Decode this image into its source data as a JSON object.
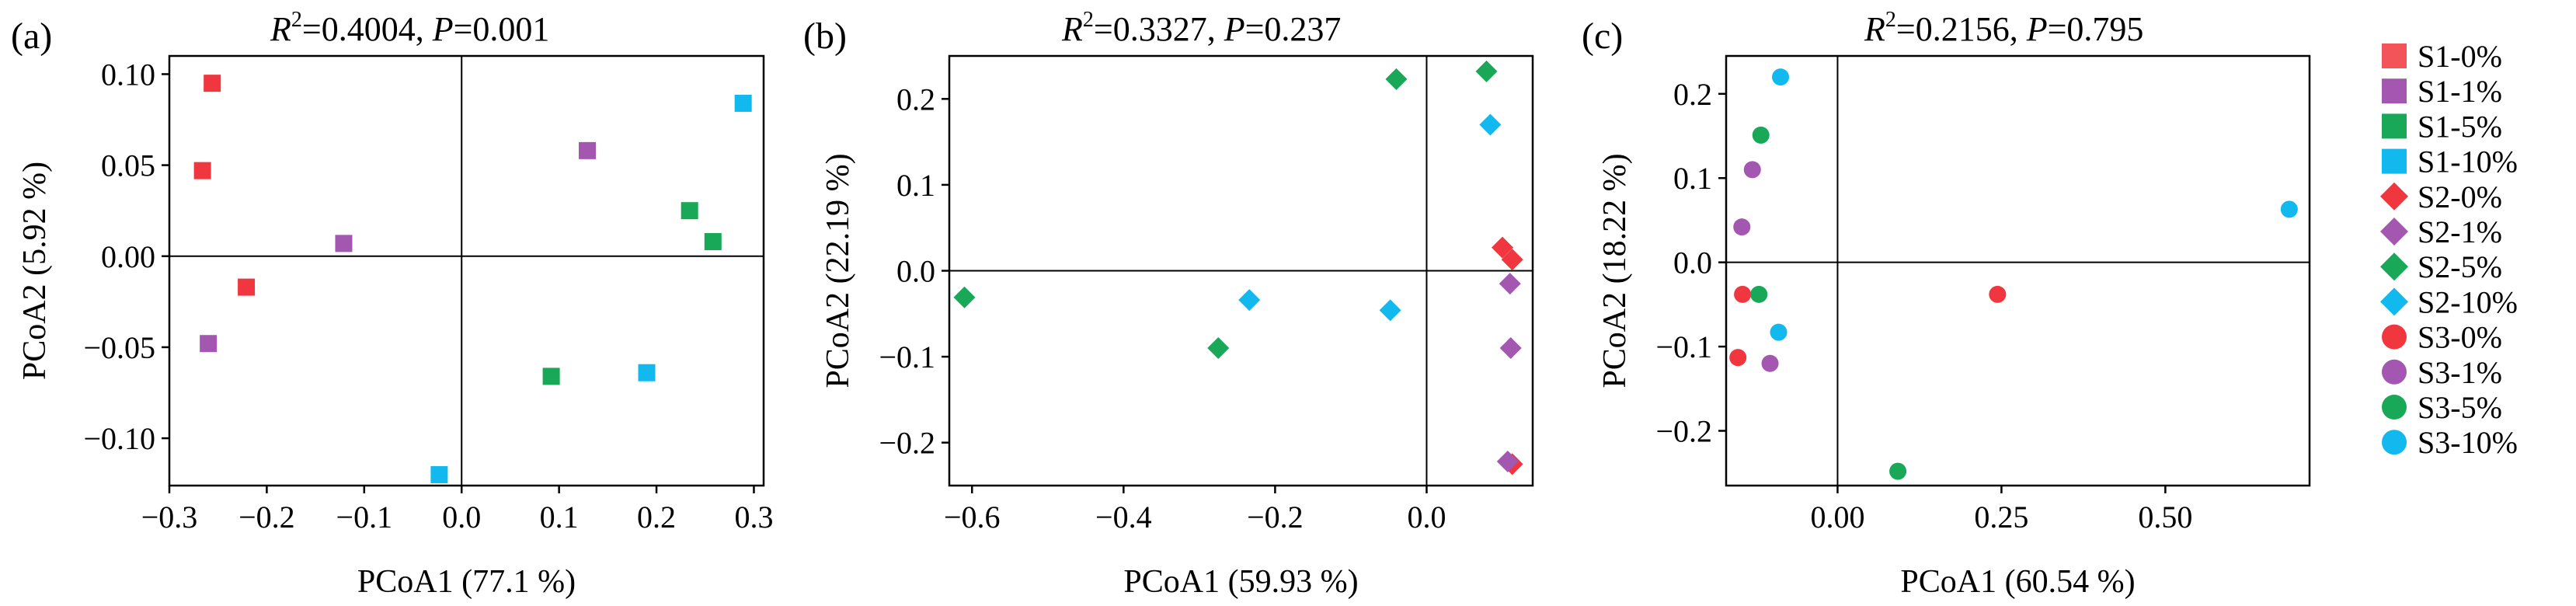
{
  "colors": {
    "0%": "#f0373f",
    "1%": "#a357b0",
    "5%": "#18a857",
    "10%": "#12b9ee",
    "legend_0%": "#f2545a"
  },
  "legend": [
    {
      "label": "S1-0%",
      "marker": "square",
      "level": "0%"
    },
    {
      "label": "S1-1%",
      "marker": "square",
      "level": "1%"
    },
    {
      "label": "S1-5%",
      "marker": "square",
      "level": "5%"
    },
    {
      "label": "S1-10%",
      "marker": "square",
      "level": "10%"
    },
    {
      "label": "S2-0%",
      "marker": "diamond",
      "level": "0%"
    },
    {
      "label": "S2-1%",
      "marker": "diamond",
      "level": "1%"
    },
    {
      "label": "S2-5%",
      "marker": "diamond",
      "level": "5%"
    },
    {
      "label": "S2-10%",
      "marker": "diamond",
      "level": "10%"
    },
    {
      "label": "S3-0%",
      "marker": "circle",
      "level": "0%"
    },
    {
      "label": "S3-1%",
      "marker": "circle",
      "level": "1%"
    },
    {
      "label": "S3-5%",
      "marker": "circle",
      "level": "5%"
    },
    {
      "label": "S3-10%",
      "marker": "circle",
      "level": "10%"
    }
  ],
  "chart_data": [
    {
      "type": "scatter",
      "tag": "(a)",
      "title_r2": "=0.4004, ",
      "title_p": "=0.001",
      "xlabel": "PCoA1 (77.1 %)",
      "ylabel": "PCoA2 (5.92 %)",
      "xlim": [
        -0.3,
        0.31
      ],
      "ylim": [
        -0.126,
        0.11
      ],
      "xticks": [
        -0.3,
        -0.2,
        -0.1,
        0.0,
        0.1,
        0.2,
        0.3
      ],
      "xticklabels": [
        "−0.3",
        "−0.2",
        "−0.1",
        "0.0",
        "0.1",
        "0.2",
        "0.3"
      ],
      "yticks": [
        -0.1,
        -0.05,
        0.0,
        0.05,
        0.1
      ],
      "yticklabels": [
        "−0.10",
        "−0.05",
        "0.00",
        "0.05",
        "0.10"
      ],
      "marker": "square",
      "points": [
        {
          "level": "0%",
          "x": -0.256,
          "y": 0.095
        },
        {
          "level": "0%",
          "x": -0.266,
          "y": 0.047
        },
        {
          "level": "0%",
          "x": -0.221,
          "y": -0.017
        },
        {
          "level": "1%",
          "x": -0.121,
          "y": 0.007
        },
        {
          "level": "1%",
          "x": -0.26,
          "y": -0.048
        },
        {
          "level": "1%",
          "x": 0.129,
          "y": 0.058
        },
        {
          "level": "5%",
          "x": 0.234,
          "y": 0.025
        },
        {
          "level": "5%",
          "x": 0.258,
          "y": 0.008
        },
        {
          "level": "5%",
          "x": 0.092,
          "y": -0.066
        },
        {
          "level": "10%",
          "x": 0.289,
          "y": 0.084
        },
        {
          "level": "10%",
          "x": 0.19,
          "y": -0.064
        },
        {
          "level": "10%",
          "x": -0.023,
          "y": -0.12
        }
      ]
    },
    {
      "type": "scatter",
      "tag": "(b)",
      "title_r2": "=0.3327, ",
      "title_p": "=0.237",
      "xlabel": "PCoA1 (59.93 %)",
      "ylabel": "PCoA2 (22.19 %)",
      "xlim": [
        -0.63,
        0.14
      ],
      "ylim": [
        -0.25,
        0.25
      ],
      "xticks": [
        -0.6,
        -0.4,
        -0.2,
        0.0
      ],
      "xticklabels": [
        "−0.6",
        "−0.4",
        "−0.2",
        "0.0"
      ],
      "yticks": [
        -0.2,
        -0.1,
        0.0,
        0.1,
        0.2
      ],
      "yticklabels": [
        "−0.2",
        "−0.1",
        "0.0",
        "0.1",
        "0.2"
      ],
      "marker": "diamond",
      "points": [
        {
          "level": "0%",
          "x": 0.1,
          "y": 0.027
        },
        {
          "level": "0%",
          "x": 0.113,
          "y": 0.013
        },
        {
          "level": "0%",
          "x": 0.113,
          "y": -0.225
        },
        {
          "level": "1%",
          "x": 0.11,
          "y": -0.015
        },
        {
          "level": "1%",
          "x": 0.111,
          "y": -0.09
        },
        {
          "level": "1%",
          "x": 0.107,
          "y": -0.222
        },
        {
          "level": "5%",
          "x": -0.04,
          "y": 0.223
        },
        {
          "level": "5%",
          "x": 0.079,
          "y": 0.232
        },
        {
          "level": "5%",
          "x": -0.61,
          "y": -0.031
        },
        {
          "level": "5%",
          "x": -0.275,
          "y": -0.09
        },
        {
          "level": "10%",
          "x": 0.084,
          "y": 0.17
        },
        {
          "level": "10%",
          "x": -0.234,
          "y": -0.034
        },
        {
          "level": "10%",
          "x": -0.048,
          "y": -0.046
        }
      ]
    },
    {
      "type": "scatter",
      "tag": "(c)",
      "title_r2": "=0.2156, ",
      "title_p": "=0.795",
      "xlabel": "PCoA1 (60.54 %)",
      "ylabel": "PCoA2 (18.22 %)",
      "xlim": [
        -0.17,
        0.72
      ],
      "ylim": [
        -0.265,
        0.245
      ],
      "xticks": [
        0.0,
        0.25,
        0.5
      ],
      "xticklabels": [
        "0.00",
        "0.25",
        "0.50"
      ],
      "yticks": [
        -0.2,
        -0.1,
        0.0,
        0.1,
        0.2
      ],
      "yticklabels": [
        "−0.2",
        "−0.1",
        "0.0",
        "0.1",
        "0.2"
      ],
      "marker": "circle",
      "points": [
        {
          "level": "0%",
          "x": -0.145,
          "y": -0.038
        },
        {
          "level": "0%",
          "x": -0.152,
          "y": -0.113
        },
        {
          "level": "0%",
          "x": 0.244,
          "y": -0.038
        },
        {
          "level": "1%",
          "x": -0.13,
          "y": 0.11
        },
        {
          "level": "1%",
          "x": -0.146,
          "y": 0.042
        },
        {
          "level": "1%",
          "x": -0.103,
          "y": -0.12
        },
        {
          "level": "5%",
          "x": -0.117,
          "y": 0.151
        },
        {
          "level": "5%",
          "x": -0.12,
          "y": -0.038
        },
        {
          "level": "5%",
          "x": 0.092,
          "y": -0.248
        },
        {
          "level": "10%",
          "x": -0.087,
          "y": 0.22
        },
        {
          "level": "10%",
          "x": -0.09,
          "y": -0.083
        },
        {
          "level": "10%",
          "x": 0.689,
          "y": 0.063
        }
      ]
    }
  ]
}
